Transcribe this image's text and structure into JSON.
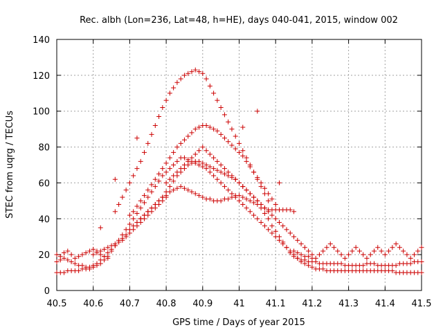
{
  "chart_data": {
    "type": "scatter",
    "title": "Rec. albh (Lon=236, Lat=48, h=HE), days 040-041, 2015, window 002",
    "xlabel": "GPS time / Days of year 2015",
    "ylabel": "STEC from uqrg / TECUs",
    "xlim": [
      40.5,
      41.5
    ],
    "ylim": [
      0,
      140
    ],
    "x_ticks": [
      40.5,
      40.6,
      40.7,
      40.8,
      40.9,
      41.0,
      41.1,
      41.2,
      41.3,
      41.4,
      41.5
    ],
    "x_tick_labels": [
      "40.5",
      "40.6",
      "40.7",
      "40.8",
      "40.9",
      "41",
      "41.1",
      "41.2",
      "41.3",
      "41.4",
      "41.5"
    ],
    "y_ticks": [
      0,
      20,
      40,
      60,
      80,
      100,
      120,
      140
    ],
    "y_tick_labels": [
      "0",
      "20",
      "40",
      "60",
      "80",
      "100",
      "120",
      "140"
    ],
    "grid": true,
    "legend": "none",
    "marker": "plus",
    "color": "#cc0000",
    "series": [
      {
        "x": [
          40.5,
          40.51,
          40.52,
          40.53,
          40.54,
          40.55,
          40.56,
          40.57,
          40.58,
          40.59,
          40.6,
          40.61,
          40.62,
          40.63,
          40.64,
          40.65,
          40.66,
          40.67,
          40.68,
          40.69,
          40.7,
          40.71,
          40.72,
          40.73,
          40.74,
          40.75,
          40.76,
          40.77,
          40.78,
          40.79,
          40.8,
          40.81,
          40.82,
          40.83,
          40.84,
          40.85,
          40.86,
          40.87,
          40.88,
          40.89,
          40.9,
          40.91,
          40.92,
          40.93,
          40.94,
          40.95,
          40.96,
          40.97,
          40.98,
          40.99,
          41.0,
          41.01,
          41.02,
          41.03,
          41.04,
          41.05,
          41.06,
          41.07,
          41.08,
          41.09,
          41.1,
          41.11,
          41.12,
          41.13,
          41.14,
          41.15,
          41.16,
          41.17,
          41.18,
          41.19,
          41.2,
          41.21,
          41.22,
          41.23,
          41.24,
          41.25,
          41.26,
          41.27,
          41.28,
          41.29,
          41.3,
          41.31,
          41.32,
          41.33,
          41.34,
          41.35,
          41.36,
          41.37,
          41.38,
          41.39,
          41.4,
          41.41,
          41.42,
          41.43,
          41.44,
          41.45,
          41.46,
          41.47,
          41.48,
          41.49,
          41.5
        ],
        "y": [
          16,
          17,
          18,
          17,
          16,
          15,
          14,
          14,
          13,
          13,
          14,
          15,
          17,
          19,
          21,
          23,
          25,
          27,
          29,
          31,
          34,
          36,
          38,
          40,
          42,
          44,
          46,
          48,
          50,
          52,
          53,
          55,
          56,
          57,
          58,
          57,
          56,
          55,
          54,
          53,
          52,
          51,
          51,
          50,
          50,
          50,
          51,
          51,
          52,
          53,
          53,
          52,
          51,
          50,
          49,
          48,
          46,
          43,
          40,
          36,
          33,
          30,
          27,
          24,
          21,
          19,
          18,
          17,
          17,
          16,
          16,
          16,
          15,
          15,
          15,
          15,
          15,
          15,
          15,
          14,
          14,
          14,
          14,
          14,
          14,
          15,
          15,
          15,
          14,
          14,
          14,
          14,
          14,
          14,
          15,
          15,
          15,
          15,
          16,
          16,
          16
        ]
      },
      {
        "x": [
          40.5,
          40.51,
          40.52,
          40.53,
          40.54,
          40.55,
          40.56,
          40.57,
          40.58,
          40.59,
          40.6,
          40.61,
          40.62,
          40.63,
          40.64,
          40.65,
          40.66,
          40.67,
          40.68,
          40.69,
          40.7,
          40.71,
          40.72,
          40.73,
          40.74,
          40.75,
          40.76,
          40.77,
          40.78,
          40.79,
          40.8,
          40.81,
          40.82,
          40.83,
          40.84,
          40.85,
          40.86,
          40.87,
          40.88,
          40.89,
          40.9,
          40.91,
          40.92,
          40.93,
          40.94,
          40.95,
          40.96,
          40.97,
          40.98,
          40.99,
          41.0,
          41.01,
          41.02,
          41.03,
          41.04,
          41.05,
          41.06,
          41.07,
          41.08,
          41.09,
          41.1,
          41.11,
          41.12,
          41.13,
          41.14,
          41.15,
          41.16,
          41.17,
          41.18,
          41.19,
          41.2,
          41.21,
          41.22,
          41.23,
          41.24,
          41.25,
          41.26,
          41.27,
          41.28,
          41.29,
          41.3,
          41.31,
          41.32,
          41.33,
          41.34,
          41.35,
          41.36,
          41.37,
          41.38,
          41.39,
          41.4,
          41.41,
          41.42,
          41.43,
          41.44,
          41.45,
          41.46,
          41.47,
          41.48,
          41.49,
          41.5
        ],
        "y": [
          10,
          10,
          10,
          11,
          11,
          11,
          11,
          12,
          12,
          12,
          13,
          14,
          15,
          17,
          19,
          22,
          25,
          28,
          31,
          34,
          37,
          40,
          43,
          46,
          49,
          52,
          55,
          58,
          61,
          64,
          66,
          68,
          70,
          72,
          74,
          74,
          73,
          72,
          71,
          70,
          69,
          68,
          66,
          64,
          62,
          60,
          58,
          56,
          54,
          52,
          50,
          48,
          46,
          44,
          42,
          40,
          38,
          36,
          34,
          32,
          30,
          28,
          26,
          24,
          22,
          20,
          18,
          16,
          15,
          14,
          13,
          12,
          12,
          12,
          11,
          11,
          11,
          11,
          11,
          11,
          11,
          11,
          11,
          11,
          11,
          11,
          11,
          11,
          11,
          11,
          11,
          11,
          11,
          10,
          10,
          10,
          10,
          10,
          10,
          10,
          10
        ]
      },
      {
        "x": [
          40.66,
          40.67,
          40.68,
          40.69,
          40.7,
          40.71,
          40.72,
          40.73,
          40.74,
          40.75,
          40.76,
          40.77,
          40.78,
          40.79,
          40.8,
          40.81,
          40.82,
          40.83,
          40.84,
          40.85,
          40.86,
          40.87,
          40.88,
          40.89,
          40.9,
          40.91,
          40.92,
          40.93,
          40.94,
          40.95,
          40.96,
          40.97,
          40.98,
          40.99,
          41.0,
          41.01,
          41.02,
          41.03,
          41.04,
          41.05,
          41.06,
          41.07,
          41.08
        ],
        "y": [
          44,
          48,
          52,
          56,
          60,
          64,
          68,
          72,
          77,
          82,
          87,
          92,
          97,
          102,
          106,
          110,
          113,
          116,
          118,
          120,
          121,
          122,
          123,
          122,
          121,
          118,
          114,
          110,
          106,
          102,
          98,
          94,
          90,
          86,
          82,
          78,
          74,
          70,
          66,
          62,
          58,
          54,
          50
        ]
      },
      {
        "x": [
          40.7,
          40.71,
          40.72,
          40.73,
          40.74,
          40.75,
          40.76,
          40.77,
          40.78,
          40.79,
          40.8,
          40.81,
          40.82,
          40.83,
          40.84,
          40.85,
          40.86,
          40.87,
          40.88,
          40.89,
          40.9,
          40.91,
          40.92,
          40.93,
          40.94,
          40.95,
          40.96,
          40.97,
          40.98,
          40.99,
          41.0,
          41.01,
          41.02,
          41.03,
          41.04,
          41.05,
          41.06,
          41.07,
          41.08,
          41.09,
          41.1
        ],
        "y": [
          42,
          44,
          47,
          50,
          53,
          56,
          59,
          62,
          65,
          68,
          71,
          74,
          77,
          80,
          82,
          84,
          86,
          88,
          90,
          91,
          92,
          92,
          91,
          90,
          89,
          87,
          85,
          83,
          81,
          79,
          77,
          75,
          72,
          69,
          66,
          63,
          60,
          57,
          54,
          51,
          48
        ]
      },
      {
        "x": [
          40.72,
          40.73,
          40.74,
          40.75,
          40.76,
          40.77,
          40.78,
          40.79,
          40.8,
          40.81,
          40.82,
          40.83,
          40.84,
          40.85,
          40.86,
          40.87,
          40.88,
          40.89,
          40.9,
          40.91,
          40.92,
          40.93,
          40.94,
          40.95,
          40.96,
          40.97,
          40.98,
          40.99,
          41.0,
          41.01,
          41.02,
          41.03,
          41.04,
          41.05,
          41.06,
          41.07,
          41.08,
          41.09,
          41.1,
          41.11,
          41.12,
          41.13,
          41.14,
          41.15
        ],
        "y": [
          38,
          40,
          42,
          44,
          46,
          48,
          50,
          52,
          55,
          58,
          61,
          64,
          66,
          68,
          70,
          71,
          72,
          72,
          71,
          70,
          69,
          68,
          67,
          66,
          65,
          64,
          63,
          62,
          60,
          58,
          56,
          54,
          52,
          50,
          48,
          46,
          45,
          45,
          45,
          45,
          45,
          45,
          45,
          44
        ]
      },
      {
        "x": [
          40.8,
          40.81,
          40.82,
          40.83,
          40.84,
          40.85,
          40.86,
          40.87,
          40.88,
          40.89,
          40.9,
          40.91,
          40.92,
          40.93,
          40.94,
          40.95,
          40.96,
          40.97,
          40.98,
          40.99,
          41.0,
          41.01,
          41.02,
          41.03,
          41.04,
          41.05,
          41.06,
          41.07,
          41.08,
          41.09,
          41.1,
          41.11,
          41.12,
          41.13,
          41.14,
          41.15,
          41.16,
          41.17,
          41.18,
          41.19,
          41.2
        ],
        "y": [
          60,
          62,
          64,
          66,
          68,
          70,
          72,
          74,
          76,
          78,
          80,
          78,
          76,
          74,
          72,
          70,
          68,
          66,
          64,
          62,
          60,
          58,
          56,
          54,
          52,
          50,
          48,
          46,
          44,
          42,
          40,
          38,
          36,
          34,
          32,
          30,
          28,
          26,
          24,
          22,
          20
        ]
      },
      {
        "x": [
          40.6,
          40.61,
          40.62,
          40.63,
          40.64,
          40.65,
          40.66,
          40.67,
          40.68,
          40.69,
          40.7,
          40.71,
          40.72,
          40.73,
          40.74,
          40.75,
          40.76,
          40.77,
          40.78,
          40.79,
          40.8
        ],
        "y": [
          20,
          21,
          22,
          23,
          24,
          25,
          26,
          27,
          28,
          30,
          32,
          34,
          36,
          38,
          40,
          42,
          44,
          46,
          48,
          50,
          52
        ]
      },
      {
        "x": [
          41.15,
          41.16,
          41.17,
          41.18,
          41.19,
          41.2,
          41.21,
          41.22,
          41.23,
          41.24,
          41.25,
          41.26,
          41.27,
          41.28,
          41.29,
          41.3,
          41.31,
          41.32,
          41.33,
          41.34,
          41.35,
          41.36,
          41.37,
          41.38,
          41.39,
          41.4,
          41.41,
          41.42,
          41.43,
          41.44,
          41.45,
          41.46,
          41.47,
          41.48,
          41.49,
          41.5
        ],
        "y": [
          22,
          21,
          20,
          19,
          19,
          18,
          18,
          20,
          22,
          24,
          26,
          24,
          22,
          20,
          18,
          20,
          22,
          24,
          22,
          20,
          18,
          20,
          22,
          24,
          22,
          20,
          22,
          24,
          26,
          24,
          22,
          20,
          18,
          20,
          22,
          24
        ]
      },
      {
        "x": [
          40.5,
          40.51,
          40.52,
          40.53,
          40.54,
          40.55,
          40.56,
          40.57,
          40.58,
          40.59,
          40.6,
          40.61,
          40.62,
          40.63,
          40.64
        ],
        "y": [
          20,
          19,
          21,
          22,
          20,
          18,
          19,
          20,
          21,
          22,
          23,
          22,
          20,
          19,
          18
        ]
      }
    ],
    "annotations": [
      {
        "x": 40.62,
        "y": 35
      },
      {
        "x": 40.66,
        "y": 62
      },
      {
        "x": 41.05,
        "y": 100
      },
      {
        "x": 41.01,
        "y": 91
      },
      {
        "x": 41.11,
        "y": 60
      },
      {
        "x": 40.72,
        "y": 85
      }
    ]
  }
}
